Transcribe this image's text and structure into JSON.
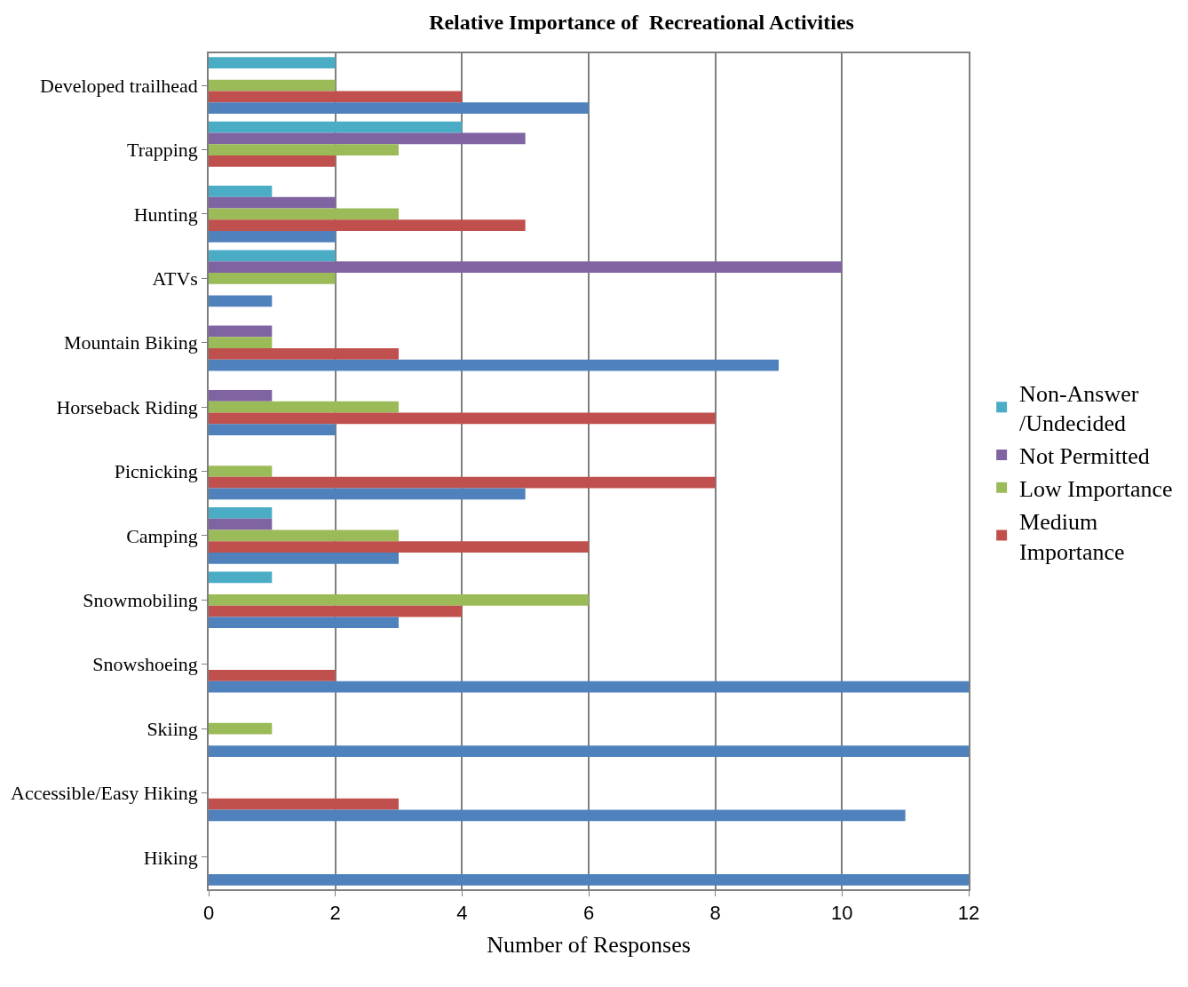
{
  "chart_data": {
    "type": "bar",
    "orientation": "horizontal",
    "title": "Relative Importance of  Recreational Activities",
    "xlabel": "Number of Responses",
    "categories": [
      "Developed trailhead",
      "Trapping",
      "Hunting",
      "ATVs",
      "Mountain Biking",
      "Horseback Riding",
      "Picnicking",
      "Camping",
      "Snowmobiling",
      "Snowshoeing",
      "Skiing",
      "Accessible/Easy Hiking",
      "Hiking"
    ],
    "series": [
      {
        "name": "Non-Answer /Undecided",
        "color": "#4bacc6",
        "values": [
          2,
          4,
          1,
          2,
          0,
          0,
          0,
          1,
          1,
          0,
          0,
          0,
          0
        ]
      },
      {
        "name": "Not Permitted",
        "color": "#8064a2",
        "values": [
          0,
          5,
          2,
          10,
          1,
          1,
          0,
          1,
          0,
          0,
          0,
          0,
          0
        ]
      },
      {
        "name": "Low Importance",
        "color": "#9bbb59",
        "values": [
          2,
          3,
          3,
          2,
          1,
          3,
          1,
          3,
          6,
          0,
          1,
          0,
          0
        ]
      },
      {
        "name": "Medium Importance",
        "color": "#c0504d",
        "values": [
          4,
          2,
          5,
          0,
          3,
          8,
          8,
          6,
          4,
          2,
          0,
          3,
          0
        ]
      },
      {
        "color": "#4f81bd",
        "values": [
          6,
          0,
          2,
          1,
          9,
          2,
          5,
          3,
          3,
          12,
          12,
          11,
          12
        ]
      }
    ],
    "xlim": [
      0,
      12
    ],
    "xticks": [
      0,
      2,
      4,
      6,
      8,
      10,
      12
    ],
    "grid": "x",
    "legend": "right"
  }
}
